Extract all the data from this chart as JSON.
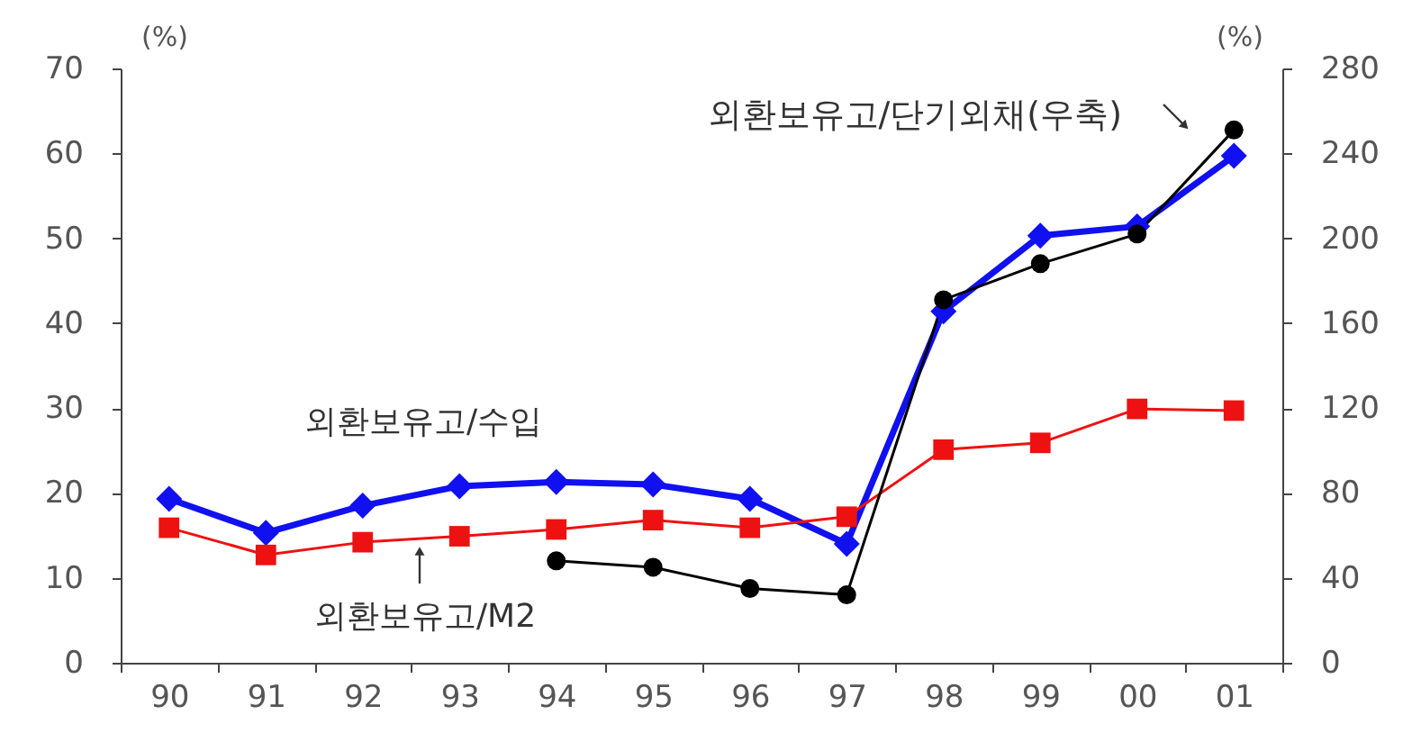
{
  "chart_data": {
    "type": "line",
    "categories": [
      "90",
      "91",
      "92",
      "93",
      "94",
      "95",
      "96",
      "97",
      "98",
      "99",
      "00",
      "01"
    ],
    "ylabel": "(%)",
    "y2label": "(%)",
    "ylim": [
      0,
      70
    ],
    "yticks": [
      0,
      10,
      20,
      30,
      40,
      50,
      60,
      70
    ],
    "y2lim": [
      0,
      280
    ],
    "y2ticks": [
      0,
      40,
      80,
      120,
      160,
      200,
      240,
      280
    ],
    "series": [
      {
        "name": "외환보유고/수입",
        "color": "#1010f0",
        "marker": "diamond",
        "values": [
          19.3,
          15.3,
          18.5,
          20.8,
          21.3,
          21.0,
          19.3,
          14.0,
          41.4,
          50.3,
          51.4,
          59.7
        ]
      },
      {
        "name": "외환보유고/M2",
        "color": "#ee1111",
        "marker": "square",
        "values": [
          15.9,
          12.7,
          14.2,
          14.9,
          15.7,
          16.8,
          15.9,
          17.2,
          25.1,
          25.9,
          29.9,
          29.7
        ]
      },
      {
        "name": "외환보유고/단기외채(우축)",
        "color": "#000000",
        "marker": "circle",
        "axis": "y2",
        "values": [
          null,
          null,
          null,
          null,
          48,
          45,
          35,
          32,
          171,
          188,
          202,
          251
        ]
      }
    ]
  }
}
